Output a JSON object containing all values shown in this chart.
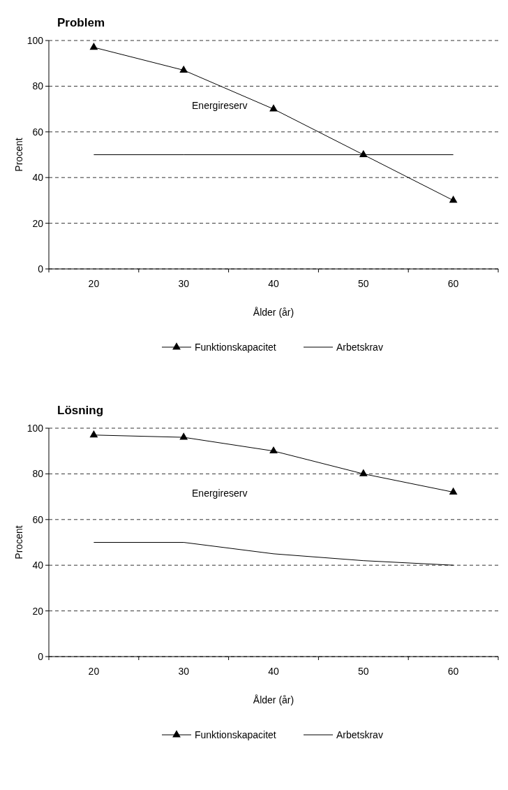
{
  "chart_data": [
    {
      "type": "line",
      "title": "Problem",
      "xlabel": "Ålder (år)",
      "ylabel": "Procent",
      "categories": [
        "20",
        "30",
        "40",
        "50",
        "60"
      ],
      "ylim": [
        0,
        100
      ],
      "yticks": [
        0,
        20,
        40,
        60,
        80,
        100
      ],
      "grid": "y",
      "line_style": "solid",
      "legend": "bottom",
      "annotations": [
        "Energireserv"
      ],
      "series": [
        {
          "name": "Funktionskapacitet",
          "color": "#000000",
          "marker": "triangle",
          "values": [
            97,
            87,
            70,
            50,
            30
          ]
        },
        {
          "name": "Arbetskrav",
          "color": "#000000",
          "marker": "none",
          "values": [
            50,
            50,
            50,
            50,
            50
          ]
        }
      ]
    },
    {
      "type": "line",
      "title": "Lösning",
      "xlabel": "Ålder (år)",
      "ylabel": "Procent",
      "categories": [
        "20",
        "30",
        "40",
        "50",
        "60"
      ],
      "ylim": [
        0,
        100
      ],
      "yticks": [
        0,
        20,
        40,
        60,
        80,
        100
      ],
      "grid": "y",
      "line_style": "solid",
      "legend": "bottom",
      "annotations": [
        "Energireserv"
      ],
      "series": [
        {
          "name": "Funktionskapacitet",
          "color": "#000000",
          "marker": "triangle",
          "values": [
            97,
            96,
            90,
            80,
            72
          ]
        },
        {
          "name": "Arbetskrav",
          "color": "#000000",
          "marker": "none",
          "values": [
            50,
            50,
            45,
            42,
            40
          ]
        }
      ]
    }
  ]
}
